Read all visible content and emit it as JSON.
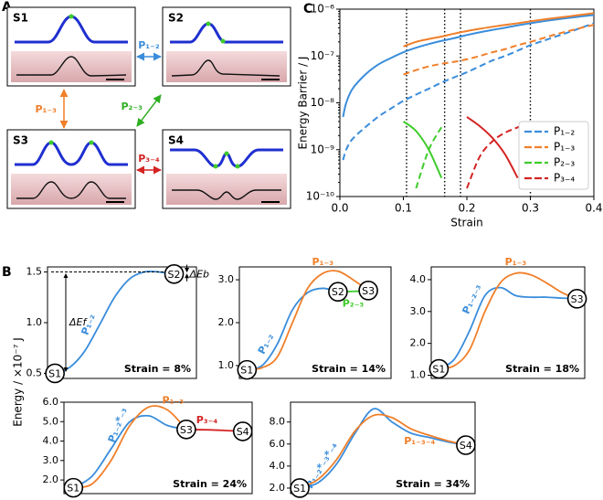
{
  "panel_labels": [
    "A",
    "B",
    "C"
  ],
  "diagram": {
    "states": [
      "S1",
      "S2",
      "S3",
      "S4"
    ],
    "transitions": [
      "P₁₋₂",
      "P₁₋₃",
      "P₂₋₃",
      "P₃₋₄"
    ]
  },
  "panel_b_ylabel": "Energy / ×10⁻⁷ J",
  "chart_data": [
    {
      "type": "line",
      "log_y": true,
      "xlabel": "Strain",
      "ylabel": "Energy Barrier / J",
      "x": [
        0.005,
        0.01,
        0.02,
        0.04,
        0.06,
        0.08,
        0.1,
        0.12,
        0.14,
        0.16,
        0.18,
        0.2,
        0.22,
        0.24,
        0.26,
        0.28,
        0.3,
        0.32,
        0.34,
        0.36,
        0.38,
        0.4
      ],
      "xlim": [
        0,
        0.4
      ],
      "xticks": [
        {
          "value": 0,
          "label": "0.0"
        },
        0.1,
        0.2,
        0.3,
        0.4
      ],
      "ylim": [
        1e-10,
        1e-06
      ],
      "yticks": [
        {
          "value": 1e-10,
          "label": "10⁻¹⁰"
        },
        {
          "value": 1e-09,
          "label": "10⁻⁹"
        },
        {
          "value": 1e-08,
          "label": "10⁻⁸"
        },
        {
          "value": 1e-07,
          "label": "10⁻⁷"
        },
        {
          "value": 1e-06,
          "label": "10⁻⁶"
        }
      ],
      "vlines": [
        0.105,
        0.165,
        0.19,
        0.3
      ],
      "legend": "center right",
      "series": [
        {
          "name": "P₁₋₂",
          "color": "#3a8ddb",
          "values": [
            5e-09,
            1e-08,
            2e-08,
            4e-08,
            6.5e-08,
            9e-08,
            1.2e-07,
            1.5e-07,
            1.8e-07,
            2.1e-07,
            2.4e-07,
            2.8e-07,
            3.2e-07,
            3.6e-07,
            4e-07,
            4.5e-07,
            5e-07,
            5.5e-07,
            6e-07,
            6.5e-07,
            7e-07,
            7.5e-07
          ],
          "dashed": [
            6e-10,
            1e-09,
            1.7e-09,
            3e-09,
            5e-09,
            7.5e-09,
            1.1e-08,
            1.5e-08,
            2e-08,
            2.7e-08,
            3.5e-08,
            4.5e-08,
            6e-08,
            8e-08,
            1e-07,
            1.3e-07,
            1.7e-07,
            2.1e-07,
            2.6e-07,
            3.2e-07,
            4e-07,
            5e-07
          ]
        },
        {
          "name": "P₁₋₃",
          "color": "#f07f2a",
          "values": [
            null,
            null,
            null,
            null,
            null,
            null,
            1.6e-07,
            2e-07,
            2.3e-07,
            2.6e-07,
            3e-07,
            3.4e-07,
            3.8e-07,
            4.2e-07,
            4.6e-07,
            5e-07,
            5.5e-07,
            6e-07,
            6.5e-07,
            7e-07,
            7.6e-07,
            8.2e-07
          ],
          "dashed": [
            null,
            null,
            null,
            null,
            null,
            null,
            4e-08,
            5e-08,
            6e-08,
            6.8e-08,
            7.5e-08,
            8.5e-08,
            1e-07,
            1.2e-07,
            1.4e-07,
            1.7e-07,
            2e-07,
            2.4e-07,
            2.9e-07,
            3.4e-07,
            4e-07,
            4.6e-07
          ]
        },
        {
          "name": "P₂₋₃",
          "color": "#3fcc2c",
          "values": [
            null,
            null,
            null,
            null,
            null,
            null,
            4e-09,
            2.5e-09,
            1e-09,
            2.5e-10,
            null,
            null,
            null,
            null,
            null,
            null,
            null,
            null,
            null,
            null,
            null,
            null
          ],
          "dashed": [
            null,
            null,
            null,
            null,
            null,
            null,
            null,
            1.5e-10,
            1e-09,
            3e-09,
            null,
            null,
            null,
            null,
            null,
            null,
            null,
            null,
            null,
            null,
            null,
            null
          ]
        },
        {
          "name": "P₃₋₄",
          "color": "#d42424",
          "values": [
            null,
            null,
            null,
            null,
            null,
            null,
            null,
            null,
            null,
            null,
            null,
            5e-09,
            3.2e-09,
            1.8e-09,
            8e-10,
            2.5e-10,
            null,
            null,
            null,
            null,
            null,
            null
          ],
          "dashed": [
            null,
            null,
            null,
            null,
            null,
            null,
            null,
            null,
            null,
            null,
            null,
            1.5e-10,
            7e-10,
            1.5e-09,
            2.3e-09,
            3e-09,
            4e-09,
            null,
            null,
            null,
            null,
            null
          ]
        }
      ]
    },
    {
      "type": "line",
      "x": [
        0.05,
        0.15,
        0.25,
        0.35,
        0.45,
        0.55,
        0.65,
        0.75,
        0.85,
        0.95
      ],
      "xlim": [
        0,
        1
      ],
      "ylim": [
        0.45,
        1.55
      ],
      "yticks": [
        0.5,
        {
          "value": 1,
          "label": "1.0"
        },
        1.5
      ],
      "annotations": [
        "Strain = 8%"
      ],
      "energy_labels": [
        "ΔEf",
        "ΔEb"
      ],
      "series": [
        {
          "name": "P₁₋₂",
          "color": "#3a8ddb",
          "values": [
            0.5,
            0.56,
            0.72,
            0.98,
            1.25,
            1.43,
            1.5,
            1.5,
            1.48,
            null
          ]
        }
      ],
      "nodes": [
        {
          "label": "S1",
          "x": 0.05,
          "y": 0.5
        },
        {
          "label": "S2",
          "x": 0.85,
          "y": 1.48
        }
      ]
    },
    {
      "type": "line",
      "x": [
        0.05,
        0.15,
        0.25,
        0.35,
        0.45,
        0.55,
        0.65,
        0.75,
        0.85,
        0.95
      ],
      "xlim": [
        0,
        1
      ],
      "ylim": [
        0.7,
        3.3
      ],
      "yticks": [
        {
          "value": 1,
          "label": "1.0"
        },
        {
          "value": 2,
          "label": "2.0"
        },
        {
          "value": 3,
          "label": "3.0"
        }
      ],
      "annotations": [
        "Strain = 14%"
      ],
      "series": [
        {
          "name": "P₁₋₂",
          "color": "#3a8ddb",
          "values": [
            0.9,
            1.0,
            1.5,
            2.3,
            2.7,
            2.8,
            2.72,
            null,
            null,
            null
          ]
        },
        {
          "name": "P₁₋₃",
          "color": "#f07f2a",
          "values": [
            0.9,
            0.95,
            1.2,
            2.0,
            2.8,
            3.15,
            3.2,
            3.0,
            2.75,
            null
          ]
        },
        {
          "name": "P₂₋₃",
          "color": "#3fcc2c",
          "values": [
            null,
            null,
            null,
            null,
            null,
            null,
            2.72,
            2.73,
            2.75,
            null
          ]
        }
      ],
      "nodes": [
        {
          "label": "S1",
          "x": 0.05,
          "y": 0.9
        },
        {
          "label": "S2",
          "x": 0.65,
          "y": 2.72
        },
        {
          "label": "S3",
          "x": 0.85,
          "y": 2.75
        }
      ]
    },
    {
      "type": "line",
      "x": [
        0.05,
        0.15,
        0.25,
        0.35,
        0.45,
        0.55,
        0.65,
        0.75,
        0.85,
        0.95
      ],
      "xlim": [
        0,
        1
      ],
      "ylim": [
        0.9,
        4.4
      ],
      "yticks": [
        {
          "value": 1,
          "label": "1.0"
        },
        {
          "value": 2,
          "label": "2.0"
        },
        {
          "value": 3,
          "label": "3.0"
        },
        {
          "value": 4,
          "label": "4.0"
        }
      ],
      "annotations": [
        "Strain = 18%"
      ],
      "series": [
        {
          "name": "P₁₋₂₋₃",
          "color": "#3a8ddb",
          "values": [
            1.2,
            1.5,
            2.4,
            3.5,
            3.75,
            3.5,
            3.45,
            3.45,
            3.42,
            3.4
          ]
        },
        {
          "name": "P₁₋₃",
          "color": "#f07f2a",
          "values": [
            1.2,
            1.3,
            1.8,
            3.0,
            3.9,
            4.2,
            4.15,
            3.9,
            3.6,
            3.4
          ]
        }
      ],
      "nodes": [
        {
          "label": "S1",
          "x": 0.05,
          "y": 1.2
        },
        {
          "label": "S3",
          "x": 0.95,
          "y": 3.4
        }
      ]
    },
    {
      "type": "line",
      "x": [
        0.05,
        0.15,
        0.25,
        0.35,
        0.45,
        0.55,
        0.65,
        0.75,
        0.85,
        0.95
      ],
      "xlim": [
        0,
        1
      ],
      "ylim": [
        1.3,
        6.0
      ],
      "yticks": [
        {
          "value": 2,
          "label": "2.0"
        },
        {
          "value": 3,
          "label": "3.0"
        },
        {
          "value": 4,
          "label": "4.0"
        },
        {
          "value": 5,
          "label": "5.0"
        },
        {
          "value": 6,
          "label": "6.0"
        }
      ],
      "annotations": [
        "Strain = 24%"
      ],
      "series": [
        {
          "name": "P₁₋₂*₋₃",
          "color": "#3a8ddb",
          "values": [
            1.6,
            2.2,
            3.6,
            5.0,
            5.3,
            4.8,
            4.6,
            null,
            null,
            null
          ]
        },
        {
          "name": "P₁₋₃",
          "color": "#f07f2a",
          "values": [
            1.6,
            1.8,
            3.0,
            4.8,
            5.75,
            5.6,
            4.6,
            null,
            null,
            null
          ]
        },
        {
          "name": "P₃₋₄",
          "color": "#d42424",
          "values": [
            null,
            null,
            null,
            null,
            null,
            null,
            4.6,
            4.58,
            4.55,
            4.5
          ]
        }
      ],
      "nodes": [
        {
          "label": "S1",
          "x": 0.05,
          "y": 1.6
        },
        {
          "label": "S3",
          "x": 0.65,
          "y": 4.6
        },
        {
          "label": "S4",
          "x": 0.95,
          "y": 4.5
        }
      ]
    },
    {
      "type": "line",
      "x": [
        0.05,
        0.15,
        0.25,
        0.35,
        0.45,
        0.55,
        0.65,
        0.75,
        0.85,
        0.95
      ],
      "xlim": [
        0,
        1
      ],
      "ylim": [
        1.5,
        9.8
      ],
      "yticks": [
        {
          "value": 2,
          "label": "2.0"
        },
        {
          "value": 4,
          "label": "4.0"
        },
        {
          "value": 6,
          "label": "6.0"
        },
        {
          "value": 8,
          "label": "8.0"
        }
      ],
      "annotations": [
        "Strain = 34%"
      ],
      "series": [
        {
          "name": "P₁₋₂*₋₃*₋₄",
          "color": "#3a8ddb",
          "values": [
            2.0,
            2.5,
            4.2,
            7.0,
            9.2,
            8.0,
            7.0,
            6.6,
            6.2,
            5.9
          ]
        },
        {
          "name": "P₁₋₃₋₄",
          "color": "#f07f2a",
          "values": [
            2.0,
            2.8,
            4.6,
            7.2,
            8.6,
            8.4,
            7.4,
            6.8,
            6.3,
            5.9
          ]
        }
      ],
      "nodes": [
        {
          "label": "S1",
          "x": 0.05,
          "y": 2.0
        },
        {
          "label": "S4",
          "x": 0.95,
          "y": 5.9
        }
      ]
    }
  ]
}
